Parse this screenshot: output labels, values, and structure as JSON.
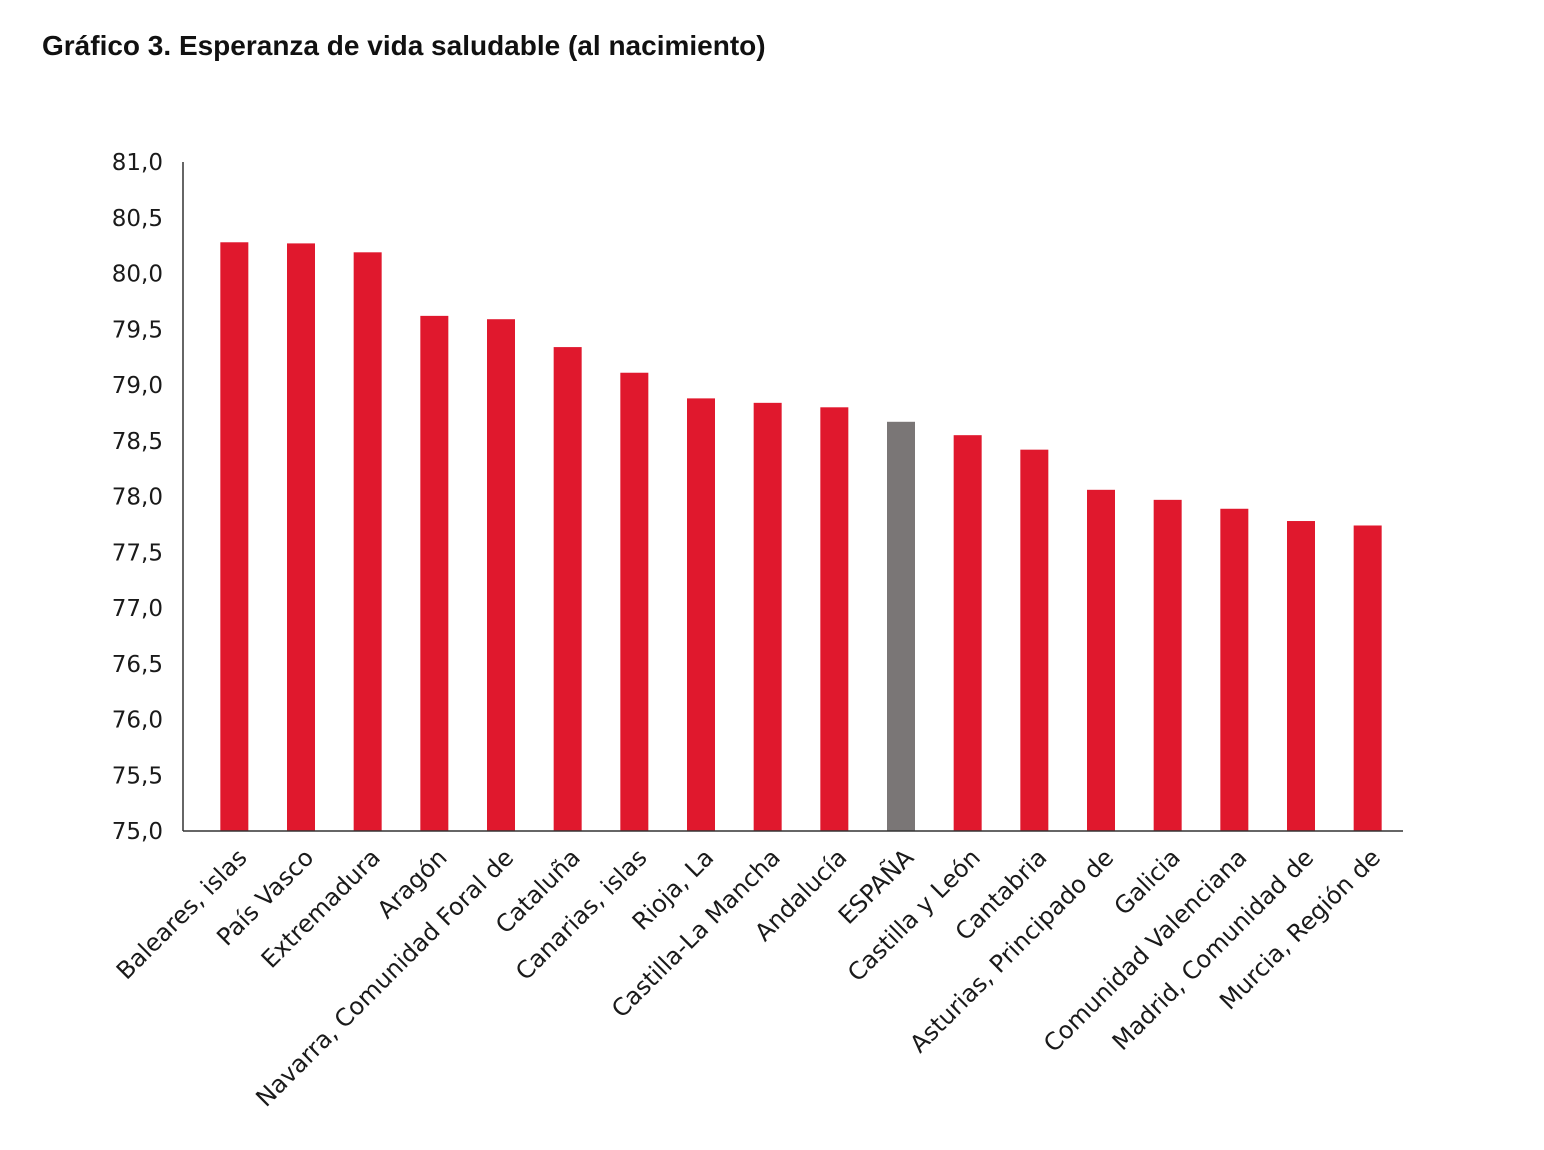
{
  "title": "Gráfico 3. Esperanza de vida saludable (al nacimiento)",
  "chart_data": {
    "type": "bar",
    "title": "Gráfico 3. Esperanza de vida saludable (al nacimiento)",
    "xlabel": "",
    "ylabel": "",
    "ylim": [
      75.0,
      81.0
    ],
    "yticks": [
      "75,0",
      "75,5",
      "76,0",
      "76,5",
      "77,0",
      "77,5",
      "78,0",
      "78,5",
      "79,0",
      "79,5",
      "80,0",
      "80,5",
      "81,0"
    ],
    "grid": false,
    "legend": "none",
    "categories": [
      "Baleares, islas",
      "País Vasco",
      "Extremadura",
      "Aragón",
      "Navarra, Comunidad Foral de",
      "Cataluña",
      "Canarias, islas",
      "Rioja, La",
      "Castilla-La Mancha",
      "Andalucía",
      "ESPAÑA",
      "Castilla y León",
      "Cantabria",
      "Asturias, Principado de",
      "Galicia",
      "Comunidad Valenciana",
      "Madrid, Comunidad de",
      "Murcia, Región de"
    ],
    "values": [
      80.28,
      80.27,
      80.19,
      79.62,
      79.59,
      79.34,
      79.11,
      78.88,
      78.84,
      78.8,
      78.67,
      78.55,
      78.42,
      78.06,
      77.97,
      77.89,
      77.78,
      77.74
    ],
    "colors": {
      "default": "#e0182d",
      "highlight": "#7a7676"
    },
    "highlight_category": "ESPAÑA"
  }
}
